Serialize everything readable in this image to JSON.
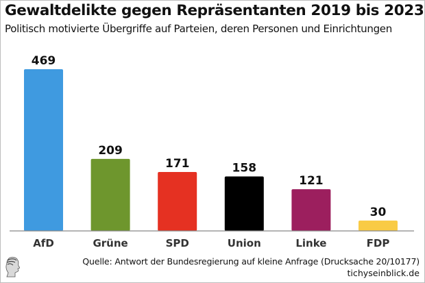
{
  "header": {
    "title": "Gewaltdelikte gegen Repräsentanten 2019 bis 2023",
    "subtitle": "Politisch motivierte Übergriffe auf Parteien, deren Personen und Einrichtungen"
  },
  "footer": {
    "source": "Quelle: Antwort der Bundesregierung auf kleine Anfrage (Drucksache 20/10177)",
    "site": "tichyseinblick.de",
    "logo_icon": "profile-head-logo-icon"
  },
  "chart_data": {
    "type": "bar",
    "title": "Gewaltdelikte gegen Repräsentanten 2019 bis 2023",
    "subtitle": "Politisch motivierte Übergriffe auf Parteien, deren Personen und Einrichtungen",
    "xlabel": "",
    "ylabel": "",
    "categories": [
      "AfD",
      "Grüne",
      "SPD",
      "Union",
      "Linke",
      "FDP"
    ],
    "values": [
      469,
      209,
      171,
      158,
      121,
      30
    ],
    "colors": [
      "#3f9ae0",
      "#6e962d",
      "#e53122",
      "#000000",
      "#9c1f5e",
      "#f9cb45"
    ],
    "data_labels": [
      "469",
      "209",
      "171",
      "158",
      "121",
      "30"
    ],
    "ylim": [
      0,
      469
    ],
    "grid": false,
    "legend": "none",
    "axis_color": "#888888"
  }
}
